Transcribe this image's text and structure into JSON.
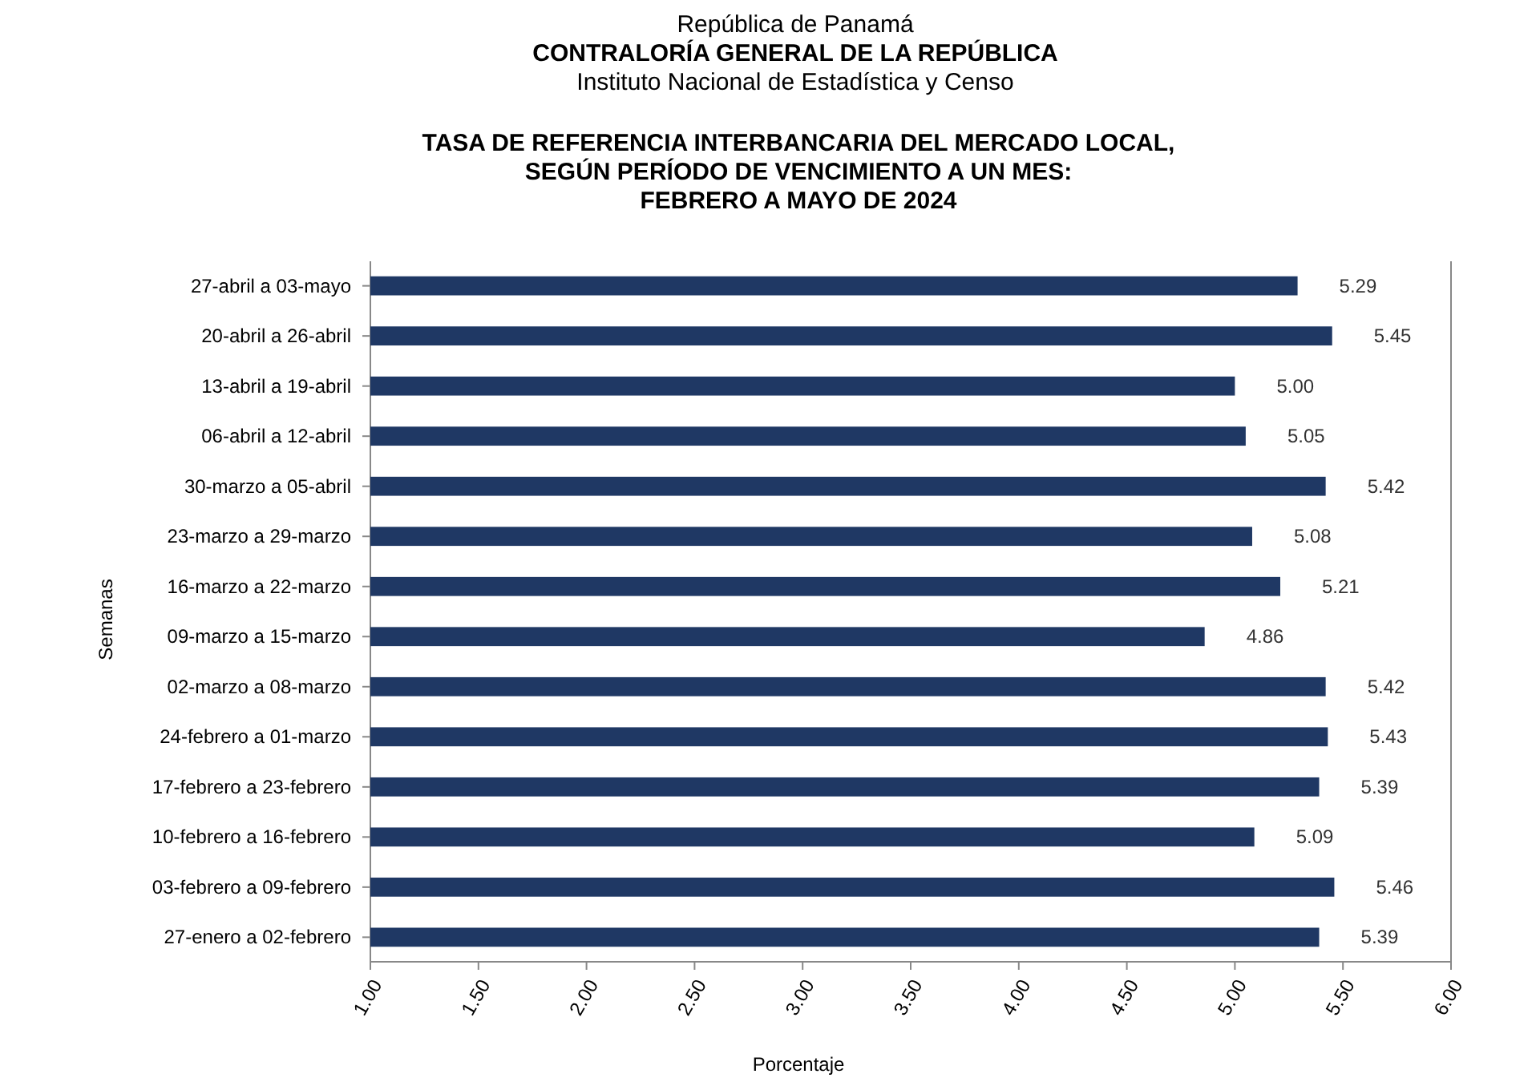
{
  "chart_data": {
    "type": "bar",
    "orientation": "horizontal",
    "annotations": [
      "República de Panamá",
      "CONTRALORÍA GENERAL DE LA REPÚBLICA",
      "Instituto Nacional de Estadística y Censo"
    ],
    "title": "TASA DE REFERENCIA INTERBANCARIA DEL MERCADO LOCAL,\nSEGÚN PERÍODO DE VENCIMIENTO A UN MES:\nFEBRERO A MAYO DE 2024",
    "xlabel": "Porcentaje",
    "ylabel": "Semanas",
    "categories": [
      "27-abril a 03-mayo",
      "20-abril a 26-abril",
      "13-abril a 19-abril",
      "06-abril a 12-abril",
      "30-marzo a 05-abril",
      "23-marzo a 29-marzo",
      "16-marzo a 22-marzo",
      "09-marzo a 15-marzo",
      "02-marzo a 08-marzo",
      "24-febrero a 01-marzo",
      "17-febrero a 23-febrero",
      "10-febrero a 16-febrero",
      "03-febrero a 09-febrero",
      "27-enero a 02-febrero"
    ],
    "values": [
      5.29,
      5.45,
      5.0,
      5.05,
      5.42,
      5.08,
      5.21,
      4.86,
      5.42,
      5.43,
      5.39,
      5.09,
      5.46,
      5.39
    ],
    "value_labels": [
      "5.29",
      "5.45",
      "5.00",
      "5.05",
      "5.42",
      "5.08",
      "5.21",
      "4.86",
      "5.42",
      "5.43",
      "5.39",
      "5.09",
      "5.46",
      "5.39"
    ],
    "color": "#1f3864",
    "xlim": [
      1,
      6
    ],
    "xticks": [
      {
        "value": 1,
        "label": "1.00"
      },
      {
        "value": 1.5,
        "label": "1.50"
      },
      {
        "value": 2,
        "label": "2.00"
      },
      {
        "value": 2.5,
        "label": "2.50"
      },
      {
        "value": 3,
        "label": "3.00"
      },
      {
        "value": 3.5,
        "label": "3.50"
      },
      {
        "value": 4,
        "label": "4.00"
      },
      {
        "value": 4.5,
        "label": "4.50"
      },
      {
        "value": 5,
        "label": "5.00"
      },
      {
        "value": 5.5,
        "label": "5.50"
      },
      {
        "value": 6,
        "label": "6.00"
      }
    ],
    "grid": false
  }
}
